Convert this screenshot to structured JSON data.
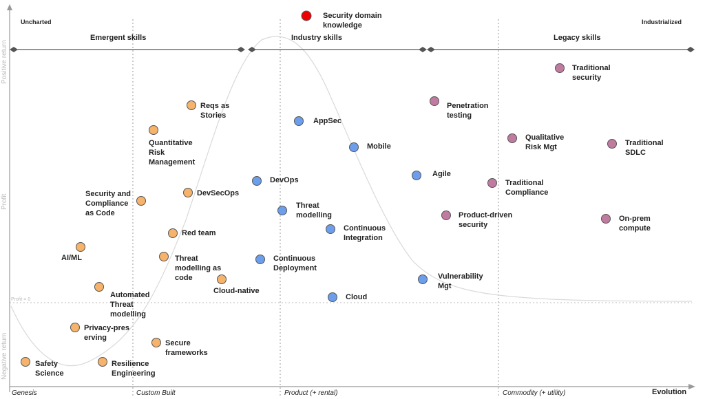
{
  "corners": {
    "left": "Uncharted",
    "right": "Industrialized"
  },
  "zones": [
    "Emergent  skills",
    "Industry skills",
    "Legacy skills"
  ],
  "phases": [
    "Genesis",
    "Custom Built",
    "Product (+ rental)",
    "Commodity (+ utility)"
  ],
  "x_axis_label": "Evolution",
  "y_axis": {
    "positive": "Positive return",
    "profit": "Profit",
    "negative": "Negative return",
    "profit_zero": "Profit = 0"
  },
  "colors": {
    "orange": "#f5b36b",
    "blue": "#6d9eeb",
    "purple": "#c27ba0",
    "red": "#ee0000",
    "stroke": "#555555",
    "grid": "#999999",
    "curve": "#d9d9d9"
  },
  "nodes": [
    {
      "label": "Security domain\nknowledge",
      "group": "red"
    },
    {
      "label": "Safety\nScience",
      "group": "orange"
    },
    {
      "label": "Resilience\nEngineering",
      "group": "orange"
    },
    {
      "label": "Secure\nframeworks",
      "group": "orange"
    },
    {
      "label": "Privacy-pres\nerving",
      "group": "orange"
    },
    {
      "label": "Automated\nThreat\nmodelling",
      "group": "orange"
    },
    {
      "label": "AI/ML",
      "group": "orange"
    },
    {
      "label": "Threat\nmodelling as\ncode",
      "group": "orange"
    },
    {
      "label": "Cloud-native",
      "group": "orange"
    },
    {
      "label": "Red team",
      "group": "orange"
    },
    {
      "label": "Security and\nCompliance\nas Code",
      "group": "orange"
    },
    {
      "label": "DevSecOps",
      "group": "orange"
    },
    {
      "label": "Quantitative\nRisk\nManagement",
      "group": "orange"
    },
    {
      "label": "Reqs as\nStories",
      "group": "orange"
    },
    {
      "label": "AppSec",
      "group": "blue"
    },
    {
      "label": "Mobile",
      "group": "blue"
    },
    {
      "label": "DevOps",
      "group": "blue"
    },
    {
      "label": "Threat\nmodelling",
      "group": "blue"
    },
    {
      "label": "Continuous\nIntegration",
      "group": "blue"
    },
    {
      "label": "Continuous\nDeployment",
      "group": "blue"
    },
    {
      "label": "Cloud",
      "group": "blue"
    },
    {
      "label": "Agile",
      "group": "blue"
    },
    {
      "label": "Vulnerability\nMgt",
      "group": "blue"
    },
    {
      "label": "Penetration\ntesting",
      "group": "purple"
    },
    {
      "label": "Traditional\nsecurity",
      "group": "purple"
    },
    {
      "label": "Qualitative\nRisk Mgt",
      "group": "purple"
    },
    {
      "label": "Traditional\nSDLC",
      "group": "purple"
    },
    {
      "label": "Traditional\nCompliance",
      "group": "purple"
    },
    {
      "label": "Product-driven\nsecurity",
      "group": "purple"
    },
    {
      "label": "On-prem\ncompute",
      "group": "purple"
    }
  ]
}
